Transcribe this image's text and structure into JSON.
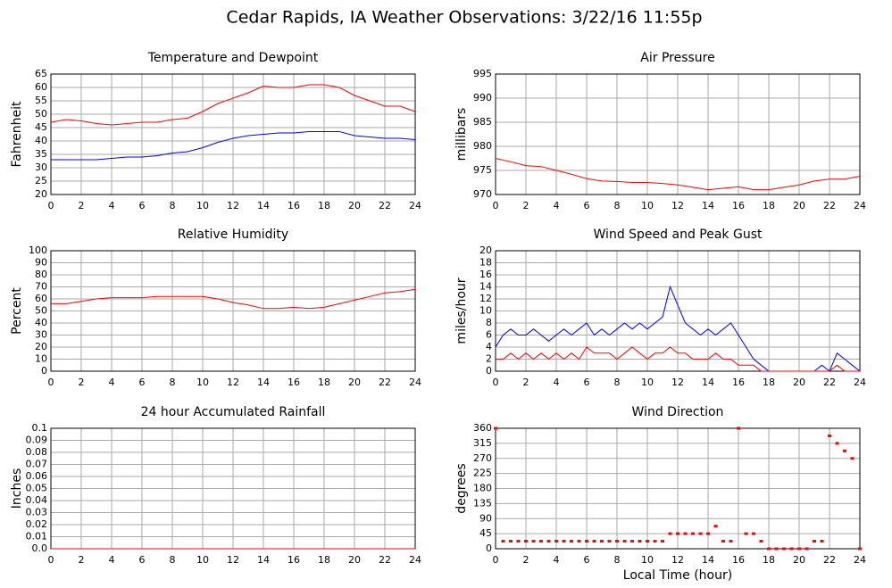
{
  "title": "Cedar Rapids, IA Weather Observations: 3/22/16 11:55p",
  "chart_data": [
    {
      "type": "line",
      "title": "Temperature and Dewpoint",
      "ylabel": "Fahrenheit",
      "x": [
        0,
        1,
        2,
        3,
        4,
        5,
        6,
        7,
        8,
        9,
        10,
        11,
        12,
        13,
        14,
        15,
        16,
        17,
        18,
        19,
        20,
        21,
        22,
        23,
        24
      ],
      "series": [
        {
          "color": "#ff0000",
          "values": [
            47,
            48,
            47.5,
            46.5,
            46,
            46.5,
            47,
            47,
            48,
            48.5,
            51,
            54,
            56,
            58,
            60.5,
            60,
            60,
            61,
            61,
            60,
            57,
            55,
            53,
            53,
            51
          ]
        },
        {
          "color": "#0000ff",
          "values": [
            33,
            33,
            33,
            33,
            33.5,
            34,
            34,
            34.5,
            35.5,
            36,
            37.5,
            39.5,
            41,
            42,
            42.5,
            43,
            43,
            43.5,
            43.5,
            43.5,
            42,
            41.5,
            41,
            41,
            40.5
          ]
        }
      ],
      "xlim": [
        0,
        24
      ],
      "xticks": [
        0,
        2,
        4,
        6,
        8,
        10,
        12,
        14,
        16,
        18,
        20,
        22,
        24
      ],
      "ylim": [
        20,
        65
      ],
      "yticks": [
        20,
        25,
        30,
        35,
        40,
        45,
        50,
        55,
        60,
        65
      ],
      "grid": true
    },
    {
      "type": "line",
      "title": "Air Pressure",
      "ylabel": "millibars",
      "x": [
        0,
        1,
        2,
        3,
        4,
        5,
        6,
        7,
        8,
        9,
        10,
        11,
        12,
        13,
        14,
        15,
        16,
        17,
        18,
        19,
        20,
        21,
        22,
        23,
        24
      ],
      "series": [
        {
          "color": "#ff0000",
          "values": [
            977.5,
            976.8,
            976,
            975.8,
            975,
            974.2,
            973.3,
            972.8,
            972.7,
            972.5,
            972.5,
            972.3,
            972,
            971.5,
            971,
            971.3,
            971.6,
            971,
            971,
            971.5,
            972,
            972.8,
            973.2,
            973.2,
            973.8
          ]
        }
      ],
      "xlim": [
        0,
        24
      ],
      "xticks": [
        0,
        2,
        4,
        6,
        8,
        10,
        12,
        14,
        16,
        18,
        20,
        22,
        24
      ],
      "ylim": [
        970,
        995
      ],
      "yticks": [
        970,
        975,
        980,
        985,
        990,
        995
      ],
      "grid": true
    },
    {
      "type": "line",
      "title": "Relative Humidity",
      "ylabel": "Percent",
      "x": [
        0,
        1,
        2,
        3,
        4,
        5,
        6,
        7,
        8,
        9,
        10,
        11,
        12,
        13,
        14,
        15,
        16,
        17,
        18,
        19,
        20,
        21,
        22,
        23,
        24
      ],
      "series": [
        {
          "color": "#ff0000",
          "values": [
            56,
            56,
            58,
            60,
            61,
            61,
            61,
            62,
            62,
            62,
            62,
            60,
            57,
            55,
            52,
            52,
            53,
            52,
            53,
            56,
            59,
            62,
            65,
            66,
            68
          ]
        }
      ],
      "xlim": [
        0,
        24
      ],
      "xticks": [
        0,
        2,
        4,
        6,
        8,
        10,
        12,
        14,
        16,
        18,
        20,
        22,
        24
      ],
      "ylim": [
        0,
        100
      ],
      "yticks": [
        0,
        10,
        20,
        30,
        40,
        50,
        60,
        70,
        80,
        90,
        100
      ],
      "grid": true
    },
    {
      "type": "line",
      "title": "Wind Speed and Peak Gust",
      "ylabel": "miles/hour",
      "x": [
        0,
        0.5,
        1,
        1.5,
        2,
        2.5,
        3,
        3.5,
        4,
        4.5,
        5,
        5.5,
        6,
        6.5,
        7,
        7.5,
        8,
        8.5,
        9,
        9.5,
        10,
        10.5,
        11,
        11.5,
        12,
        12.5,
        13,
        13.5,
        14,
        14.5,
        15,
        15.5,
        16,
        16.5,
        17,
        17.5,
        18,
        18.5,
        19,
        19.5,
        20,
        20.5,
        21,
        21.5,
        22,
        22.5,
        23,
        23.5,
        24
      ],
      "series": [
        {
          "color": "#0000ff",
          "values": [
            4,
            6,
            7,
            6,
            6,
            7,
            6,
            5,
            6,
            7,
            6,
            7,
            8,
            6,
            7,
            6,
            7,
            8,
            7,
            8,
            7,
            8,
            9,
            14,
            11,
            8,
            7,
            6,
            7,
            6,
            7,
            8,
            6,
            4,
            2,
            1,
            0,
            0,
            0,
            0,
            0,
            0,
            0,
            1,
            0,
            3,
            2,
            1,
            0
          ]
        },
        {
          "color": "#ff0000",
          "values": [
            2,
            2,
            3,
            2,
            3,
            2,
            3,
            2,
            3,
            2,
            3,
            2,
            4,
            3,
            3,
            3,
            2,
            3,
            4,
            3,
            2,
            3,
            3,
            4,
            3,
            3,
            2,
            2,
            2,
            3,
            2,
            2,
            1,
            1,
            1,
            0,
            0,
            0,
            0,
            0,
            0,
            0,
            0,
            0,
            0,
            1,
            0,
            0,
            0
          ]
        }
      ],
      "xlim": [
        0,
        24
      ],
      "xticks": [
        0,
        2,
        4,
        6,
        8,
        10,
        12,
        14,
        16,
        18,
        20,
        22,
        24
      ],
      "ylim": [
        0,
        20
      ],
      "yticks": [
        0,
        2,
        4,
        6,
        8,
        10,
        12,
        14,
        16,
        18,
        20
      ],
      "grid": true
    },
    {
      "type": "line",
      "title": "24 hour Accumulated Rainfall",
      "ylabel": "Inches",
      "x": [
        0,
        24
      ],
      "series": [
        {
          "color": "#ff0000",
          "values": [
            0,
            0
          ]
        }
      ],
      "xlim": [
        0,
        24
      ],
      "xticks": [
        0,
        2,
        4,
        6,
        8,
        10,
        12,
        14,
        16,
        18,
        20,
        22,
        24
      ],
      "ylim": [
        0,
        0.1
      ],
      "yticks": [
        {
          "value": 0,
          "label": "0.0"
        },
        0.01,
        0.02,
        0.03,
        0.04,
        0.05,
        0.06,
        0.07,
        0.08,
        0.09,
        0.1
      ],
      "grid": true
    },
    {
      "type": "scatter",
      "title": "Wind Direction",
      "ylabel": "degrees",
      "xlabel": "Local Time (hour)",
      "x": [
        0,
        0.5,
        1,
        1.5,
        2,
        2.5,
        3,
        3.5,
        4,
        4.5,
        5,
        5.5,
        6,
        6.5,
        7,
        7.5,
        8,
        8.5,
        9,
        9.5,
        10,
        10.5,
        11,
        11.5,
        12,
        12.5,
        13,
        13.5,
        14,
        14.5,
        15,
        15.5,
        16,
        16.5,
        17,
        17.5,
        18,
        18.5,
        19,
        19.5,
        20,
        20.5,
        21,
        21.5,
        22,
        22.5,
        23,
        23.5,
        24
      ],
      "series": [
        {
          "color": "#ff0000",
          "values": [
            360,
            22.5,
            22.5,
            22.5,
            22.5,
            22.5,
            22.5,
            22.5,
            22.5,
            22.5,
            22.5,
            22.5,
            22.5,
            22.5,
            22.5,
            22.5,
            22.5,
            22.5,
            22.5,
            22.5,
            22.5,
            22.5,
            22.5,
            45,
            45,
            45,
            45,
            45,
            45,
            67.5,
            22.5,
            22.5,
            360,
            45,
            45,
            22.5,
            0,
            0,
            0,
            0,
            0,
            0,
            22.5,
            22.5,
            337.5,
            315,
            292.5,
            270,
            0
          ]
        }
      ],
      "xlim": [
        0,
        24
      ],
      "xticks": [
        0,
        2,
        4,
        6,
        8,
        10,
        12,
        14,
        16,
        18,
        20,
        22,
        24
      ],
      "ylim": [
        0,
        360
      ],
      "yticks": [
        0,
        45,
        90,
        135,
        180,
        225,
        270,
        315,
        360
      ],
      "grid": true
    }
  ]
}
